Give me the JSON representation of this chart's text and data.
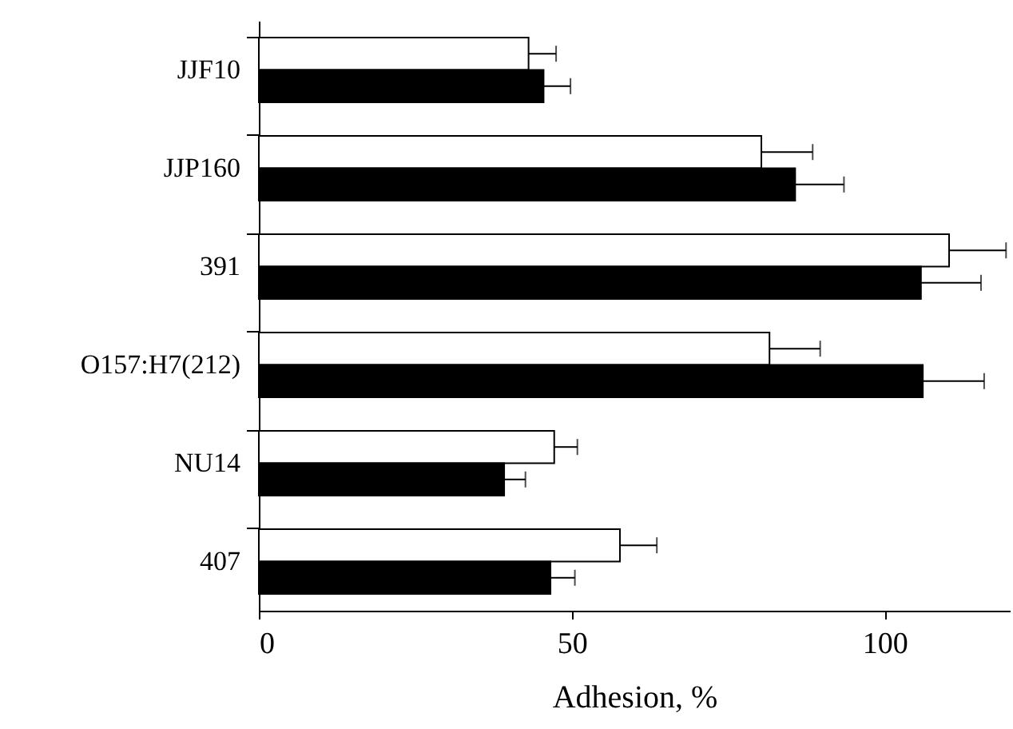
{
  "chart_data": {
    "type": "bar",
    "orientation": "horizontal",
    "xlabel": "Adhesion, %",
    "categories": [
      "JJF10",
      "JJP160",
      "391",
      "O157:H7(212)",
      "NU14",
      "407"
    ],
    "series": [
      {
        "color": "#ffffff",
        "values": [
          43.1,
          80.3,
          110.3,
          81.6,
          47.2,
          57.7
        ],
        "errors": [
          [
            43.1,
            47.5
          ],
          [
            80.3,
            88.5
          ],
          [
            110.3,
            119.4
          ],
          [
            81.6,
            89.7
          ],
          [
            47.2,
            50.9
          ],
          [
            57.7,
            63.6
          ]
        ]
      },
      {
        "color": "#000000",
        "values": [
          45.5,
          85.7,
          105.8,
          106.1,
          39.2,
          46.6
        ],
        "errors": [
          [
            45.5,
            49.8
          ],
          [
            85.7,
            93.5
          ],
          [
            105.8,
            115.4
          ],
          [
            106.1,
            115.9
          ],
          [
            39.2,
            42.6
          ],
          [
            46.6,
            50.5
          ]
        ]
      }
    ],
    "xlim": [
      0,
      120
    ],
    "xticks": [
      0,
      50,
      100
    ],
    "grid": false
  }
}
